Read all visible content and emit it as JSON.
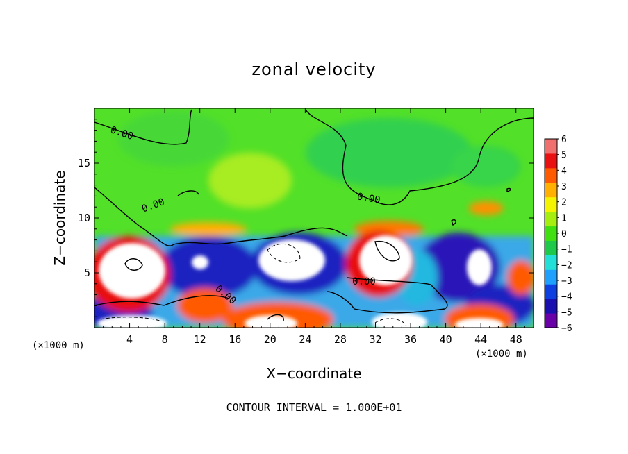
{
  "chart_data": {
    "type": "heatmap",
    "title": "zonal velocity",
    "xlabel": "X−coordinate",
    "ylabel": "Z−coordinate",
    "x_unit_label": "(×1000 m)",
    "xlim": [
      0,
      50
    ],
    "ylim": [
      0,
      20
    ],
    "x_ticks": [
      4,
      8,
      12,
      16,
      20,
      24,
      28,
      32,
      36,
      40,
      44,
      48
    ],
    "y_ticks": [
      5,
      10,
      15
    ],
    "colorbar": {
      "range": [
        -6,
        6
      ],
      "ticks": [
        6,
        5,
        4,
        3,
        2,
        1,
        0,
        -1,
        -2,
        -3,
        -4,
        -5,
        -6
      ],
      "tick_labels": [
        "6",
        "5",
        "4",
        "3",
        "2",
        "1",
        "0",
        "−1",
        "−2",
        "−3",
        "−4",
        "−5",
        "−6"
      ]
    },
    "contour_labels": [
      "0.00",
      "0.00",
      "0.00",
      "0.00",
      "0.00"
    ],
    "footer": "CONTOUR INTERVAL = 1.000E+01",
    "colors": {
      "scale": [
        "#6a00a8",
        "#1a10b0",
        "#0e3fe0",
        "#1ea0ff",
        "#22e0d8",
        "#1ec84a",
        "#40e010",
        "#a6ee10",
        "#f4f400",
        "#ffb000",
        "#ff5a00",
        "#e81010",
        "#f07070"
      ],
      "background_field": "#52e028",
      "saturated_hot": "#ffffff"
    }
  }
}
